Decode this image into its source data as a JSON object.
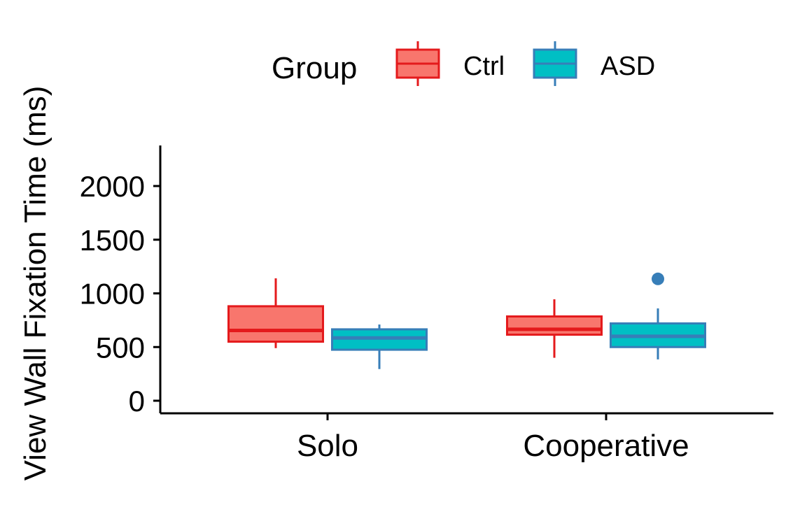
{
  "chart_data": {
    "type": "boxplot",
    "title": "",
    "xlabel": "",
    "ylabel": "View Wall Fixation Time (ms)",
    "ylim": [
      -100,
      2350
    ],
    "yticks": [
      0,
      500,
      1000,
      1500,
      2000
    ],
    "categories": [
      "Solo",
      "Cooperative"
    ],
    "grid": false,
    "legend": {
      "title": "Group",
      "position": "top"
    },
    "series": [
      {
        "name": "Ctrl",
        "fill": "#F8766D",
        "stroke": "#E41A1C",
        "boxes": [
          {
            "category": "Solo",
            "min": 490,
            "q1": 550,
            "median": 655,
            "q3": 880,
            "max": 1140,
            "outliers": []
          },
          {
            "category": "Cooperative",
            "min": 400,
            "q1": 615,
            "median": 665,
            "q3": 785,
            "max": 945,
            "outliers": []
          }
        ]
      },
      {
        "name": "ASD",
        "fill": "#00BFC4",
        "stroke": "#377EB8",
        "boxes": [
          {
            "category": "Solo",
            "min": 295,
            "q1": 475,
            "median": 585,
            "q3": 665,
            "max": 710,
            "outliers": []
          },
          {
            "category": "Cooperative",
            "min": 385,
            "q1": 500,
            "median": 600,
            "q3": 720,
            "max": 860,
            "outliers": [
              1135
            ]
          }
        ]
      }
    ]
  }
}
